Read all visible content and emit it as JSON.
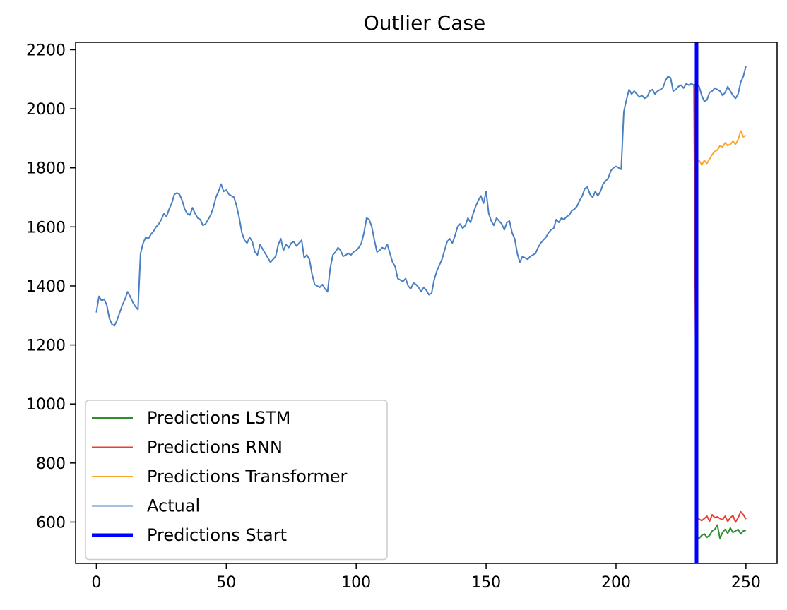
{
  "chart_data": {
    "type": "line",
    "title": "Outlier Case",
    "xlabel": "",
    "ylabel": "",
    "xlim": [
      -8,
      262
    ],
    "ylim": [
      460,
      2225
    ],
    "xticks": [
      0,
      50,
      100,
      150,
      200,
      250
    ],
    "yticks": [
      600,
      800,
      1000,
      1200,
      1400,
      1600,
      1800,
      2000,
      2200
    ],
    "grid": false,
    "legend_position": "lower-left",
    "series": [
      {
        "name": "Actual",
        "color": "#4a7fc1",
        "points": [
          [
            0,
            1310
          ],
          [
            1,
            1365
          ],
          [
            2,
            1350
          ],
          [
            3,
            1355
          ],
          [
            4,
            1335
          ],
          [
            5,
            1290
          ],
          [
            6,
            1270
          ],
          [
            7,
            1265
          ],
          [
            8,
            1285
          ],
          [
            9,
            1310
          ],
          [
            10,
            1335
          ],
          [
            11,
            1355
          ],
          [
            12,
            1380
          ],
          [
            13,
            1365
          ],
          [
            14,
            1345
          ],
          [
            15,
            1330
          ],
          [
            16,
            1320
          ],
          [
            17,
            1510
          ],
          [
            18,
            1545
          ],
          [
            19,
            1565
          ],
          [
            20,
            1560
          ],
          [
            21,
            1575
          ],
          [
            22,
            1585
          ],
          [
            23,
            1600
          ],
          [
            24,
            1610
          ],
          [
            25,
            1625
          ],
          [
            26,
            1645
          ],
          [
            27,
            1635
          ],
          [
            28,
            1660
          ],
          [
            29,
            1680
          ],
          [
            30,
            1710
          ],
          [
            31,
            1715
          ],
          [
            32,
            1710
          ],
          [
            33,
            1690
          ],
          [
            34,
            1660
          ],
          [
            35,
            1645
          ],
          [
            36,
            1640
          ],
          [
            37,
            1665
          ],
          [
            38,
            1645
          ],
          [
            39,
            1630
          ],
          [
            40,
            1625
          ],
          [
            41,
            1605
          ],
          [
            42,
            1610
          ],
          [
            43,
            1625
          ],
          [
            44,
            1640
          ],
          [
            45,
            1665
          ],
          [
            46,
            1700
          ],
          [
            47,
            1720
          ],
          [
            48,
            1745
          ],
          [
            49,
            1720
          ],
          [
            50,
            1725
          ],
          [
            51,
            1710
          ],
          [
            52,
            1705
          ],
          [
            53,
            1700
          ],
          [
            54,
            1670
          ],
          [
            55,
            1630
          ],
          [
            56,
            1580
          ],
          [
            57,
            1555
          ],
          [
            58,
            1545
          ],
          [
            59,
            1565
          ],
          [
            60,
            1550
          ],
          [
            61,
            1515
          ],
          [
            62,
            1505
          ],
          [
            63,
            1540
          ],
          [
            64,
            1525
          ],
          [
            65,
            1510
          ],
          [
            66,
            1495
          ],
          [
            67,
            1480
          ],
          [
            68,
            1490
          ],
          [
            69,
            1500
          ],
          [
            70,
            1540
          ],
          [
            71,
            1560
          ],
          [
            72,
            1520
          ],
          [
            73,
            1540
          ],
          [
            74,
            1530
          ],
          [
            75,
            1545
          ],
          [
            76,
            1550
          ],
          [
            77,
            1535
          ],
          [
            78,
            1545
          ],
          [
            79,
            1555
          ],
          [
            80,
            1495
          ],
          [
            81,
            1505
          ],
          [
            82,
            1490
          ],
          [
            83,
            1440
          ],
          [
            84,
            1405
          ],
          [
            85,
            1400
          ],
          [
            86,
            1395
          ],
          [
            87,
            1405
          ],
          [
            88,
            1390
          ],
          [
            89,
            1380
          ],
          [
            90,
            1460
          ],
          [
            91,
            1505
          ],
          [
            92,
            1515
          ],
          [
            93,
            1530
          ],
          [
            94,
            1520
          ],
          [
            95,
            1500
          ],
          [
            96,
            1505
          ],
          [
            97,
            1510
          ],
          [
            98,
            1505
          ],
          [
            99,
            1515
          ],
          [
            100,
            1520
          ],
          [
            101,
            1530
          ],
          [
            102,
            1545
          ],
          [
            103,
            1580
          ],
          [
            104,
            1630
          ],
          [
            105,
            1625
          ],
          [
            106,
            1600
          ],
          [
            107,
            1555
          ],
          [
            108,
            1515
          ],
          [
            109,
            1520
          ],
          [
            110,
            1530
          ],
          [
            111,
            1525
          ],
          [
            112,
            1540
          ],
          [
            113,
            1510
          ],
          [
            114,
            1480
          ],
          [
            115,
            1465
          ],
          [
            116,
            1425
          ],
          [
            117,
            1420
          ],
          [
            118,
            1415
          ],
          [
            119,
            1425
          ],
          [
            120,
            1400
          ],
          [
            121,
            1390
          ],
          [
            122,
            1410
          ],
          [
            123,
            1405
          ],
          [
            124,
            1395
          ],
          [
            125,
            1380
          ],
          [
            126,
            1395
          ],
          [
            127,
            1385
          ],
          [
            128,
            1370
          ],
          [
            129,
            1375
          ],
          [
            130,
            1420
          ],
          [
            131,
            1450
          ],
          [
            132,
            1470
          ],
          [
            133,
            1490
          ],
          [
            134,
            1520
          ],
          [
            135,
            1550
          ],
          [
            136,
            1560
          ],
          [
            137,
            1545
          ],
          [
            138,
            1570
          ],
          [
            139,
            1600
          ],
          [
            140,
            1610
          ],
          [
            141,
            1595
          ],
          [
            142,
            1605
          ],
          [
            143,
            1630
          ],
          [
            144,
            1615
          ],
          [
            145,
            1645
          ],
          [
            146,
            1670
          ],
          [
            147,
            1690
          ],
          [
            148,
            1705
          ],
          [
            149,
            1680
          ],
          [
            150,
            1720
          ],
          [
            151,
            1645
          ],
          [
            152,
            1620
          ],
          [
            153,
            1605
          ],
          [
            154,
            1630
          ],
          [
            155,
            1620
          ],
          [
            156,
            1610
          ],
          [
            157,
            1590
          ],
          [
            158,
            1615
          ],
          [
            159,
            1620
          ],
          [
            160,
            1580
          ],
          [
            161,
            1560
          ],
          [
            162,
            1510
          ],
          [
            163,
            1480
          ],
          [
            164,
            1500
          ],
          [
            165,
            1495
          ],
          [
            166,
            1490
          ],
          [
            167,
            1500
          ],
          [
            168,
            1505
          ],
          [
            169,
            1510
          ],
          [
            170,
            1530
          ],
          [
            171,
            1545
          ],
          [
            172,
            1555
          ],
          [
            173,
            1565
          ],
          [
            174,
            1580
          ],
          [
            175,
            1590
          ],
          [
            176,
            1595
          ],
          [
            177,
            1625
          ],
          [
            178,
            1615
          ],
          [
            179,
            1630
          ],
          [
            180,
            1625
          ],
          [
            181,
            1635
          ],
          [
            182,
            1640
          ],
          [
            183,
            1655
          ],
          [
            184,
            1660
          ],
          [
            185,
            1670
          ],
          [
            186,
            1690
          ],
          [
            187,
            1705
          ],
          [
            188,
            1730
          ],
          [
            189,
            1735
          ],
          [
            190,
            1710
          ],
          [
            191,
            1700
          ],
          [
            192,
            1720
          ],
          [
            193,
            1705
          ],
          [
            194,
            1720
          ],
          [
            195,
            1745
          ],
          [
            196,
            1755
          ],
          [
            197,
            1765
          ],
          [
            198,
            1790
          ],
          [
            199,
            1800
          ],
          [
            200,
            1805
          ],
          [
            201,
            1800
          ],
          [
            202,
            1795
          ],
          [
            203,
            1990
          ],
          [
            204,
            2030
          ],
          [
            205,
            2065
          ],
          [
            206,
            2050
          ],
          [
            207,
            2060
          ],
          [
            208,
            2050
          ],
          [
            209,
            2040
          ],
          [
            210,
            2045
          ],
          [
            211,
            2035
          ],
          [
            212,
            2040
          ],
          [
            213,
            2060
          ],
          [
            214,
            2065
          ],
          [
            215,
            2050
          ],
          [
            216,
            2060
          ],
          [
            217,
            2065
          ],
          [
            218,
            2070
          ],
          [
            219,
            2095
          ],
          [
            220,
            2110
          ],
          [
            221,
            2105
          ],
          [
            222,
            2060
          ],
          [
            223,
            2065
          ],
          [
            224,
            2075
          ],
          [
            225,
            2080
          ],
          [
            226,
            2070
          ],
          [
            227,
            2085
          ],
          [
            228,
            2080
          ],
          [
            229,
            2085
          ],
          [
            230,
            2080
          ],
          [
            231,
            2085
          ],
          [
            232,
            2075
          ],
          [
            233,
            2045
          ],
          [
            234,
            2025
          ],
          [
            235,
            2030
          ],
          [
            236,
            2055
          ],
          [
            237,
            2060
          ],
          [
            238,
            2070
          ],
          [
            239,
            2065
          ],
          [
            240,
            2060
          ],
          [
            241,
            2045
          ],
          [
            242,
            2055
          ],
          [
            243,
            2075
          ],
          [
            244,
            2060
          ],
          [
            245,
            2045
          ],
          [
            246,
            2035
          ],
          [
            247,
            2050
          ],
          [
            248,
            2090
          ],
          [
            249,
            2110
          ],
          [
            250,
            2145
          ]
        ]
      },
      {
        "name": "Predictions Transformer",
        "color": "#fca52b",
        "points": [
          [
            230,
            2080
          ],
          [
            231,
            1815
          ],
          [
            232,
            1825
          ],
          [
            233,
            1810
          ],
          [
            234,
            1825
          ],
          [
            235,
            1815
          ],
          [
            236,
            1830
          ],
          [
            237,
            1845
          ],
          [
            238,
            1855
          ],
          [
            239,
            1860
          ],
          [
            240,
            1875
          ],
          [
            241,
            1870
          ],
          [
            242,
            1885
          ],
          [
            243,
            1875
          ],
          [
            244,
            1880
          ],
          [
            245,
            1890
          ],
          [
            246,
            1880
          ],
          [
            247,
            1895
          ],
          [
            248,
            1925
          ],
          [
            249,
            1905
          ],
          [
            250,
            1910
          ]
        ]
      },
      {
        "name": "Predictions RNN",
        "color": "#ef3b2c",
        "points": [
          [
            230,
            2080
          ],
          [
            231,
            615
          ],
          [
            232,
            610
          ],
          [
            233,
            605
          ],
          [
            234,
            612
          ],
          [
            235,
            620
          ],
          [
            236,
            603
          ],
          [
            237,
            625
          ],
          [
            238,
            615
          ],
          [
            239,
            618
          ],
          [
            240,
            612
          ],
          [
            241,
            608
          ],
          [
            242,
            620
          ],
          [
            243,
            602
          ],
          [
            244,
            615
          ],
          [
            245,
            622
          ],
          [
            246,
            600
          ],
          [
            247,
            615
          ],
          [
            248,
            635
          ],
          [
            249,
            625
          ],
          [
            250,
            610
          ]
        ]
      },
      {
        "name": "Predictions LSTM",
        "color": "#2f8f2f",
        "points": [
          [
            231,
            550
          ],
          [
            232,
            545
          ],
          [
            233,
            555
          ],
          [
            234,
            560
          ],
          [
            235,
            548
          ],
          [
            236,
            555
          ],
          [
            237,
            570
          ],
          [
            238,
            575
          ],
          [
            239,
            590
          ],
          [
            240,
            545
          ],
          [
            241,
            565
          ],
          [
            242,
            575
          ],
          [
            243,
            562
          ],
          [
            244,
            580
          ],
          [
            245,
            565
          ],
          [
            246,
            570
          ],
          [
            247,
            575
          ],
          [
            248,
            560
          ],
          [
            249,
            570
          ],
          [
            250,
            572
          ]
        ]
      }
    ],
    "vlines": [
      {
        "name": "Predictions Start",
        "x": 231,
        "color": "#0000ff"
      }
    ],
    "legend": [
      {
        "label": "Predictions LSTM",
        "color": "#2f8f2f",
        "thick": false
      },
      {
        "label": "Predictions RNN",
        "color": "#ef3b2c",
        "thick": false
      },
      {
        "label": "Predictions Transformer",
        "color": "#fca52b",
        "thick": false
      },
      {
        "label": "Actual",
        "color": "#4a7fc1",
        "thick": false
      },
      {
        "label": "Predictions Start",
        "color": "#0000ff",
        "thick": true
      }
    ]
  }
}
